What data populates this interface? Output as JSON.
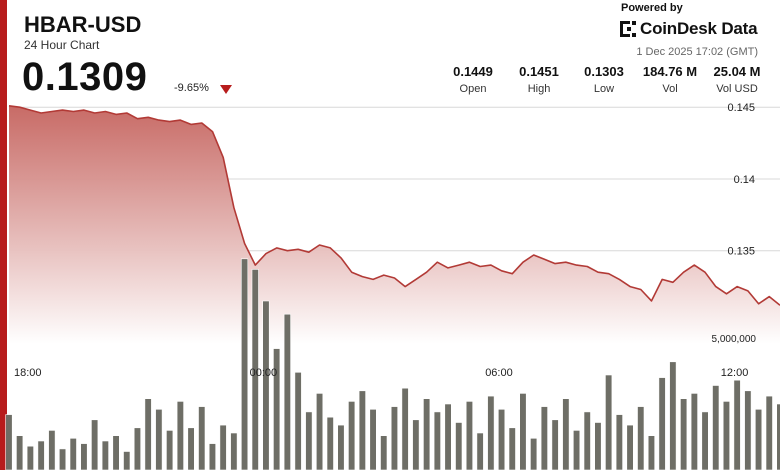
{
  "header": {
    "symbol": "HBAR-USD",
    "subtitle": "24 Hour Chart",
    "price": "0.1309",
    "change": "-9.65%",
    "powered_by": "Powered by",
    "brand": "CoinDesk Data",
    "timestamp": "1 Dec 2025 17:02 (GMT)"
  },
  "stats": [
    {
      "value": "0.1449",
      "label": "Open"
    },
    {
      "value": "0.1451",
      "label": "High"
    },
    {
      "value": "0.1303",
      "label": "Low"
    },
    {
      "value": "184.76 M",
      "label": "Vol"
    },
    {
      "value": "25.04 M",
      "label": "Vol USD"
    }
  ],
  "colors": {
    "accent": "#b71c1c",
    "line": "#b23a36",
    "area_top": "#c5635e",
    "area_bottom": "#ffffff",
    "volume_bar": "#6e6e66",
    "grid": "#d8d8d8"
  },
  "chart_data": {
    "type": "line",
    "series": [
      {
        "values": [
          0.1451,
          0.145,
          0.1448,
          0.1446,
          0.1447,
          0.1448,
          0.1447,
          0.1448,
          0.1446,
          0.1447,
          0.1445,
          0.1446,
          0.1442,
          0.1443,
          0.1441,
          0.144,
          0.1441,
          0.1438,
          0.1439,
          0.1433,
          0.1415,
          0.138,
          0.1355,
          0.134,
          0.1348,
          0.1352,
          0.135,
          0.1351,
          0.1349,
          0.1354,
          0.1352,
          0.1345,
          0.1335,
          0.1332,
          0.133,
          0.1333,
          0.1331,
          0.1325,
          0.133,
          0.1335,
          0.1342,
          0.1338,
          0.134,
          0.1342,
          0.1339,
          0.134,
          0.1336,
          0.1334,
          0.1342,
          0.1347,
          0.1344,
          0.1341,
          0.1342,
          0.134,
          0.1339,
          0.1335,
          0.1334,
          0.133,
          0.1325,
          0.1323,
          0.1315,
          0.133,
          0.1328,
          0.1335,
          0.134,
          0.1335,
          0.1325,
          0.132,
          0.1325,
          0.1322,
          0.1313,
          0.1318,
          0.1312
        ],
        "volume_max_label": "5,000,000",
        "volume": [
          2100000.0,
          1300000.0,
          900000.0,
          1100000.0,
          1500000.0,
          800000.0,
          1200000.0,
          1000000.0,
          1900000.0,
          1100000.0,
          1300000.0,
          700000.0,
          1600000.0,
          2700000.0,
          2300000.0,
          1500000.0,
          2600000.0,
          1600000.0,
          2400000.0,
          1000000.0,
          1700000.0,
          1400000.0,
          8000000.0,
          7600000.0,
          6400000.0,
          4600000.0,
          5900000.0,
          3700000.0,
          2200000.0,
          2900000.0,
          2000000.0,
          1700000.0,
          2600000.0,
          3000000.0,
          2300000.0,
          1300000.0,
          2400000.0,
          3100000.0,
          1900000.0,
          2700000.0,
          2200000.0,
          2500000.0,
          1800000.0,
          2600000.0,
          1400000.0,
          2800000.0,
          2300000.0,
          1600000.0,
          2900000.0,
          1200000.0,
          2400000.0,
          1900000.0,
          2700000.0,
          1500000.0,
          2200000.0,
          1800000.0,
          3600000.0,
          2100000.0,
          1700000.0,
          2400000.0,
          1300000.0,
          3500000.0,
          4100000.0,
          2700000.0,
          2900000.0,
          2200000.0,
          3200000.0,
          2600000.0,
          3400000.0,
          3000000.0,
          2300000.0,
          2800000.0,
          2500000.0
        ]
      }
    ],
    "x_ticks": [
      "18:00",
      "00:00",
      "06:00",
      "12:00"
    ],
    "y_ticks": [
      "0.145",
      "0.14",
      "0.135"
    ],
    "ylim": [
      0.1285,
      0.1462
    ],
    "grid": true,
    "legend": "none"
  }
}
